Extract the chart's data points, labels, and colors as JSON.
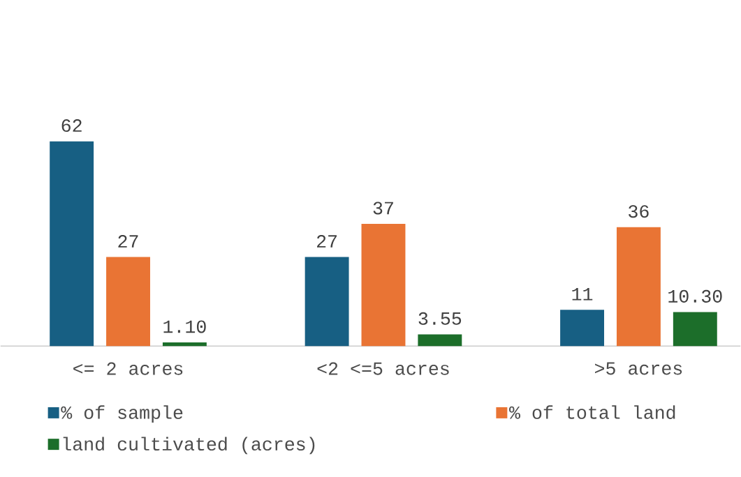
{
  "chart_data": {
    "type": "bar",
    "categories": [
      "<= 2 acres",
      "<2 <=5 acres",
      ">5 acres"
    ],
    "series": [
      {
        "name": "% of sample",
        "color": "#175f83",
        "values": [
          62,
          27,
          11
        ],
        "value_labels": [
          "62",
          "27",
          "11"
        ]
      },
      {
        "name": "% of total land",
        "color": "#e97434",
        "values": [
          27,
          37,
          36
        ],
        "value_labels": [
          "27",
          "37",
          "36"
        ]
      },
      {
        "name": "land cultivated (acres)",
        "color": "#1c6e2a",
        "values": [
          1.1,
          3.55,
          10.3
        ],
        "value_labels": [
          "1.10",
          "3.55",
          "10.30"
        ]
      }
    ],
    "legend": "bottom"
  }
}
